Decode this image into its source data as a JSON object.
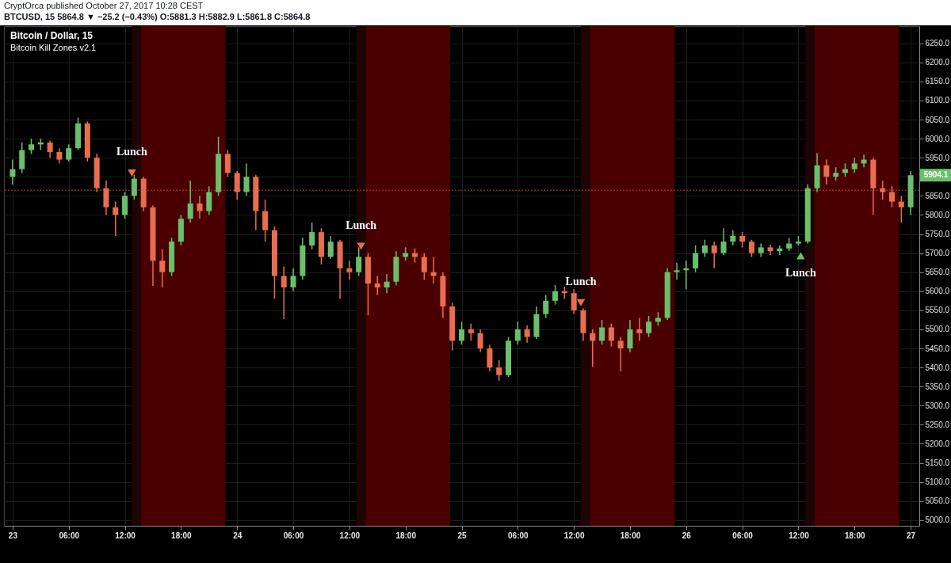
{
  "chart_data": {
    "type": "candlestick",
    "title": "Bitcoin / Dollar, 15",
    "subtitle": "Bitcoin Kill Zones v2.1",
    "annotations": [
      "CryptOrca published October 27, 2017 10:28 CEST",
      "BTCUSD, 15  5864.8 ▼ −25.2 (−0.43%) O:5881.3 H:5882.9 L:5861.8 C:5864.8",
      {
        "text": "Lunch",
        "x": "2017-10-23T12:45",
        "y": 5910
      },
      {
        "text": "Lunch",
        "x": "2017-10-24T13:15",
        "y": 5718
      },
      {
        "text": "Lunch",
        "x": "2017-10-25T12:45",
        "y": 5570
      },
      {
        "text": "Lunch",
        "x": "2017-10-26T12:15",
        "y": 5693
      },
      {
        "text": "5904.1",
        "x": "2017-10-27T00:00",
        "y": 5904.1
      }
    ],
    "x": [
      "2017-10-23T00:00",
      "2017-10-23T01:00",
      "2017-10-23T02:00",
      "2017-10-23T03:00",
      "2017-10-23T04:00",
      "2017-10-23T05:00",
      "2017-10-23T06:00",
      "2017-10-23T07:00",
      "2017-10-23T08:00",
      "2017-10-23T09:00",
      "2017-10-23T10:00",
      "2017-10-23T11:00",
      "2017-10-23T12:00",
      "2017-10-23T13:00",
      "2017-10-23T14:00",
      "2017-10-23T15:00",
      "2017-10-23T16:00",
      "2017-10-23T17:00",
      "2017-10-23T18:00",
      "2017-10-23T19:00",
      "2017-10-23T20:00",
      "2017-10-23T21:00",
      "2017-10-23T22:00",
      "2017-10-23T23:00",
      "2017-10-24T00:00",
      "2017-10-24T01:00",
      "2017-10-24T02:00",
      "2017-10-24T03:00",
      "2017-10-24T04:00",
      "2017-10-24T05:00",
      "2017-10-24T06:00",
      "2017-10-24T07:00",
      "2017-10-24T08:00",
      "2017-10-24T09:00",
      "2017-10-24T10:00",
      "2017-10-24T11:00",
      "2017-10-24T12:00",
      "2017-10-24T13:00",
      "2017-10-24T14:00",
      "2017-10-24T15:00",
      "2017-10-24T16:00",
      "2017-10-24T17:00",
      "2017-10-24T18:00",
      "2017-10-24T19:00",
      "2017-10-24T20:00",
      "2017-10-24T21:00",
      "2017-10-24T22:00",
      "2017-10-24T23:00",
      "2017-10-25T00:00",
      "2017-10-25T01:00",
      "2017-10-25T02:00",
      "2017-10-25T03:00",
      "2017-10-25T04:00",
      "2017-10-25T05:00",
      "2017-10-25T06:00",
      "2017-10-25T07:00",
      "2017-10-25T08:00",
      "2017-10-25T09:00",
      "2017-10-25T10:00",
      "2017-10-25T11:00",
      "2017-10-25T12:00",
      "2017-10-25T13:00",
      "2017-10-25T14:00",
      "2017-10-25T15:00",
      "2017-10-25T16:00",
      "2017-10-25T17:00",
      "2017-10-25T18:00",
      "2017-10-25T19:00",
      "2017-10-25T20:00",
      "2017-10-25T21:00",
      "2017-10-25T22:00",
      "2017-10-25T23:00",
      "2017-10-26T00:00",
      "2017-10-26T01:00",
      "2017-10-26T02:00",
      "2017-10-26T03:00",
      "2017-10-26T04:00",
      "2017-10-26T05:00",
      "2017-10-26T06:00",
      "2017-10-26T07:00",
      "2017-10-26T08:00",
      "2017-10-26T09:00",
      "2017-10-26T10:00",
      "2017-10-26T11:00",
      "2017-10-26T12:00",
      "2017-10-26T13:00",
      "2017-10-26T14:00",
      "2017-10-26T15:00",
      "2017-10-26T16:00",
      "2017-10-26T17:00",
      "2017-10-26T18:00",
      "2017-10-26T19:00",
      "2017-10-26T20:00",
      "2017-10-26T21:00",
      "2017-10-26T22:00",
      "2017-10-26T23:00",
      "2017-10-27T00:00"
    ],
    "ohlc": [
      [
        5900,
        5945,
        5880,
        5920
      ],
      [
        5920,
        5990,
        5910,
        5970
      ],
      [
        5970,
        6000,
        5960,
        5985
      ],
      [
        5985,
        6000,
        5970,
        5990
      ],
      [
        5990,
        5995,
        5950,
        5965
      ],
      [
        5965,
        5975,
        5935,
        5945
      ],
      [
        5945,
        5985,
        5940,
        5975
      ],
      [
        5975,
        6055,
        5970,
        6040
      ],
      [
        6040,
        6045,
        5940,
        5950
      ],
      [
        5950,
        5960,
        5860,
        5870
      ],
      [
        5870,
        5890,
        5800,
        5820
      ],
      [
        5820,
        5835,
        5745,
        5800
      ],
      [
        5800,
        5860,
        5790,
        5850
      ],
      [
        5850,
        5905,
        5840,
        5895
      ],
      [
        5895,
        5900,
        5810,
        5820
      ],
      [
        5820,
        5825,
        5614,
        5680
      ],
      [
        5680,
        5710,
        5610,
        5650
      ],
      [
        5650,
        5740,
        5640,
        5730
      ],
      [
        5730,
        5800,
        5720,
        5790
      ],
      [
        5790,
        5890,
        5780,
        5830
      ],
      [
        5830,
        5850,
        5790,
        5810
      ],
      [
        5810,
        5875,
        5800,
        5860
      ],
      [
        5860,
        6005,
        5850,
        5960
      ],
      [
        5960,
        5970,
        5900,
        5910
      ],
      [
        5910,
        5915,
        5840,
        5860
      ],
      [
        5860,
        5935,
        5850,
        5900
      ],
      [
        5900,
        5905,
        5760,
        5810
      ],
      [
        5810,
        5840,
        5730,
        5760
      ],
      [
        5760,
        5770,
        5580,
        5640
      ],
      [
        5640,
        5665,
        5527,
        5610
      ],
      [
        5610,
        5660,
        5600,
        5640
      ],
      [
        5640,
        5740,
        5630,
        5720
      ],
      [
        5720,
        5780,
        5710,
        5755
      ],
      [
        5755,
        5765,
        5670,
        5690
      ],
      [
        5690,
        5745,
        5685,
        5730
      ],
      [
        5730,
        5735,
        5580,
        5660
      ],
      [
        5660,
        5680,
        5630,
        5650
      ],
      [
        5650,
        5715,
        5640,
        5690
      ],
      [
        5690,
        5700,
        5537,
        5620
      ],
      [
        5620,
        5640,
        5590,
        5610
      ],
      [
        5610,
        5645,
        5595,
        5625
      ],
      [
        5625,
        5705,
        5615,
        5690
      ],
      [
        5690,
        5715,
        5680,
        5700
      ],
      [
        5700,
        5712,
        5675,
        5690
      ],
      [
        5690,
        5700,
        5630,
        5650
      ],
      [
        5650,
        5690,
        5620,
        5640
      ],
      [
        5640,
        5650,
        5530,
        5560
      ],
      [
        5560,
        5570,
        5445,
        5470
      ],
      [
        5470,
        5520,
        5460,
        5500
      ],
      [
        5500,
        5515,
        5470,
        5490
      ],
      [
        5490,
        5500,
        5440,
        5450
      ],
      [
        5450,
        5460,
        5390,
        5400
      ],
      [
        5400,
        5420,
        5365,
        5380
      ],
      [
        5380,
        5480,
        5375,
        5470
      ],
      [
        5470,
        5520,
        5460,
        5500
      ],
      [
        5500,
        5510,
        5465,
        5480
      ],
      [
        5480,
        5560,
        5475,
        5540
      ],
      [
        5540,
        5590,
        5530,
        5575
      ],
      [
        5575,
        5616,
        5565,
        5600
      ],
      [
        5600,
        5612,
        5580,
        5595
      ],
      [
        5595,
        5605,
        5540,
        5550
      ],
      [
        5550,
        5555,
        5470,
        5490
      ],
      [
        5490,
        5500,
        5402,
        5470
      ],
      [
        5470,
        5525,
        5460,
        5505
      ],
      [
        5505,
        5515,
        5455,
        5470
      ],
      [
        5470,
        5480,
        5390,
        5450
      ],
      [
        5450,
        5525,
        5440,
        5500
      ],
      [
        5500,
        5530,
        5470,
        5490
      ],
      [
        5490,
        5535,
        5480,
        5520
      ],
      [
        5520,
        5545,
        5510,
        5530
      ],
      [
        5530,
        5660,
        5525,
        5650
      ],
      [
        5650,
        5675,
        5630,
        5655
      ],
      [
        5655,
        5680,
        5605,
        5660
      ],
      [
        5660,
        5720,
        5650,
        5700
      ],
      [
        5700,
        5735,
        5690,
        5720
      ],
      [
        5720,
        5730,
        5660,
        5700
      ],
      [
        5700,
        5765,
        5695,
        5730
      ],
      [
        5730,
        5760,
        5720,
        5745
      ],
      [
        5745,
        5755,
        5715,
        5730
      ],
      [
        5730,
        5735,
        5690,
        5700
      ],
      [
        5700,
        5725,
        5690,
        5715
      ],
      [
        5715,
        5722,
        5695,
        5705
      ],
      [
        5705,
        5720,
        5695,
        5712
      ],
      [
        5712,
        5740,
        5705,
        5725
      ],
      [
        5725,
        5745,
        5720,
        5730
      ],
      [
        5730,
        5880,
        5725,
        5870
      ],
      [
        5870,
        5962,
        5860,
        5930
      ],
      [
        5930,
        5945,
        5880,
        5900
      ],
      [
        5900,
        5925,
        5890,
        5910
      ],
      [
        5910,
        5935,
        5900,
        5920
      ],
      [
        5920,
        5950,
        5910,
        5935
      ],
      [
        5935,
        5958,
        5925,
        5945
      ],
      [
        5945,
        5950,
        5800,
        5870
      ],
      [
        5870,
        5890,
        5840,
        5860
      ],
      [
        5860,
        5875,
        5820,
        5835
      ],
      [
        5835,
        5850,
        5780,
        5820
      ],
      [
        5820,
        5915,
        5800,
        5904.1
      ]
    ],
    "colors": [
      "#6bbf6b",
      "#6bbf6b",
      "#6bbf6b",
      "#6bbf6b",
      "#e86e4f",
      "#e86e4f",
      "#6bbf6b",
      "#6bbf6b",
      "#e86e4f",
      "#e86e4f",
      "#e86e4f",
      "#e86e4f",
      "#6bbf6b",
      "#6bbf6b",
      "#e86e4f",
      "#e86e4f",
      "#e86e4f",
      "#6bbf6b",
      "#6bbf6b",
      "#6bbf6b",
      "#e86e4f",
      "#6bbf6b",
      "#6bbf6b",
      "#e86e4f",
      "#e86e4f",
      "#6bbf6b",
      "#e86e4f",
      "#e86e4f",
      "#e86e4f",
      "#e86e4f",
      "#6bbf6b",
      "#6bbf6b",
      "#6bbf6b",
      "#e86e4f",
      "#6bbf6b",
      "#e86e4f",
      "#e86e4f",
      "#6bbf6b",
      "#e86e4f",
      "#e86e4f",
      "#6bbf6b",
      "#6bbf6b",
      "#6bbf6b",
      "#e86e4f",
      "#e86e4f",
      "#e86e4f",
      "#e86e4f",
      "#e86e4f",
      "#6bbf6b",
      "#e86e4f",
      "#e86e4f",
      "#e86e4f",
      "#e86e4f",
      "#6bbf6b",
      "#6bbf6b",
      "#e86e4f",
      "#6bbf6b",
      "#6bbf6b",
      "#6bbf6b",
      "#e86e4f",
      "#e86e4f",
      "#e86e4f",
      "#e86e4f",
      "#6bbf6b",
      "#e86e4f",
      "#e86e4f",
      "#6bbf6b",
      "#e86e4f",
      "#6bbf6b",
      "#6bbf6b",
      "#6bbf6b",
      "#6bbf6b",
      "#6bbf6b",
      "#6bbf6b",
      "#6bbf6b",
      "#e86e4f",
      "#6bbf6b",
      "#6bbf6b",
      "#e86e4f",
      "#e86e4f",
      "#6bbf6b",
      "#e86e4f",
      "#6bbf6b",
      "#6bbf6b",
      "#6bbf6b",
      "#6bbf6b",
      "#6bbf6b",
      "#e86e4f",
      "#6bbf6b",
      "#6bbf6b",
      "#6bbf6b",
      "#6bbf6b",
      "#e86e4f",
      "#e86e4f",
      "#e86e4f",
      "#e86e4f",
      "#6bbf6b"
    ],
    "xlim": [
      "2017-10-22T23:30",
      "2017-10-27T00:30"
    ],
    "xticks": [
      {
        "value": "2017-10-23T00:00",
        "label": "23"
      },
      {
        "value": "2017-10-23T06:00",
        "label": "06:00"
      },
      {
        "value": "2017-10-23T12:00",
        "label": "12:00"
      },
      {
        "value": "2017-10-23T18:00",
        "label": "18:00"
      },
      {
        "value": "2017-10-24T00:00",
        "label": "24"
      },
      {
        "value": "2017-10-24T06:00",
        "label": "06:00"
      },
      {
        "value": "2017-10-24T12:00",
        "label": "12:00"
      },
      {
        "value": "2017-10-24T18:00",
        "label": "18:00"
      },
      {
        "value": "2017-10-25T00:00",
        "label": "25"
      },
      {
        "value": "2017-10-25T06:00",
        "label": "06:00"
      },
      {
        "value": "2017-10-25T12:00",
        "label": "12:00"
      },
      {
        "value": "2017-10-25T18:00",
        "label": "18:00"
      },
      {
        "value": "2017-10-26T00:00",
        "label": "26"
      },
      {
        "value": "2017-10-26T06:00",
        "label": "06:00"
      },
      {
        "value": "2017-10-26T12:00",
        "label": "12:00"
      },
      {
        "value": "2017-10-26T18:00",
        "label": "18:00"
      },
      {
        "value": "2017-10-27T00:00",
        "label": "27"
      }
    ],
    "ylim": [
      4985,
      6295
    ],
    "yticks": [
      {
        "value": 5000,
        "label": "5000.0"
      },
      {
        "value": 5050,
        "label": "5050.0"
      },
      {
        "value": 5100,
        "label": "5100.0"
      },
      {
        "value": 5150,
        "label": "5150.0"
      },
      {
        "value": 5200,
        "label": "5200.0"
      },
      {
        "value": 5250,
        "label": "5250.0"
      },
      {
        "value": 5300,
        "label": "5300.0"
      },
      {
        "value": 5350,
        "label": "5350.0"
      },
      {
        "value": 5400,
        "label": "5400.0"
      },
      {
        "value": 5450,
        "label": "5450.0"
      },
      {
        "value": 5500,
        "label": "5500.0"
      },
      {
        "value": 5550,
        "label": "5550.0"
      },
      {
        "value": 5600,
        "label": "5600.0"
      },
      {
        "value": 5650,
        "label": "5650.0"
      },
      {
        "value": 5700,
        "label": "5700.0"
      },
      {
        "value": 5750,
        "label": "5750.0"
      },
      {
        "value": 5800,
        "label": "5800.0"
      },
      {
        "value": 5850,
        "label": "5850.0"
      },
      {
        "value": 5900,
        "label": null
      },
      {
        "value": 5950,
        "label": "5950.0"
      },
      {
        "value": 6000,
        "label": "6000.0"
      },
      {
        "value": 6050,
        "label": "6050.0"
      },
      {
        "value": 6100,
        "label": "6100.0"
      },
      {
        "value": 6150,
        "label": "6150.0"
      },
      {
        "value": 6200,
        "label": "6200.0"
      },
      {
        "value": 6250,
        "label": "6250.0"
      }
    ],
    "bands": [
      {
        "axis": "x",
        "from": "2017-10-23T12:45",
        "to": "2017-10-23T13:45",
        "color": "#1e0404"
      },
      {
        "axis": "x",
        "from": "2017-10-23T13:45",
        "to": "2017-10-23T22:45",
        "color": "#4a0000"
      },
      {
        "axis": "x",
        "from": "2017-10-24T12:45",
        "to": "2017-10-24T13:45",
        "color": "#1e0404"
      },
      {
        "axis": "x",
        "from": "2017-10-24T13:45",
        "to": "2017-10-24T22:45",
        "color": "#4a0000"
      },
      {
        "axis": "x",
        "from": "2017-10-25T12:45",
        "to": "2017-10-25T13:45",
        "color": "#1e0404"
      },
      {
        "axis": "x",
        "from": "2017-10-25T13:45",
        "to": "2017-10-25T22:45",
        "color": "#4a0000"
      },
      {
        "axis": "x",
        "from": "2017-10-26T12:45",
        "to": "2017-10-26T13:45",
        "color": "#1e0404"
      },
      {
        "axis": "x",
        "from": "2017-10-26T13:45",
        "to": "2017-10-26T22:45",
        "color": "#4a0000"
      }
    ],
    "ref_lines": [
      {
        "axis": "y",
        "value": 5864.8,
        "color": "#c0392b",
        "line_style": "dotted"
      }
    ],
    "grid": true
  }
}
